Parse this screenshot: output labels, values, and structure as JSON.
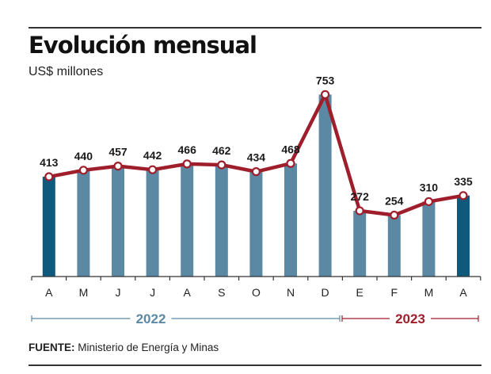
{
  "title": "Evolución mensual",
  "subtitle": "US$ millones",
  "source": {
    "label": "FUENTE:",
    "text": "Ministerio de Energía y Minas"
  },
  "colors": {
    "bar": "#5b89a4",
    "bar_highlight": "#0f5a7c",
    "line": "#9e1f2b",
    "axis": "#333333",
    "year_2022": "#5b89a4",
    "year_2023": "#9e1f2b"
  },
  "chart_data": {
    "type": "bar",
    "categories": [
      "A",
      "M",
      "J",
      "J",
      "A",
      "S",
      "O",
      "N",
      "D",
      "E",
      "F",
      "M",
      "A"
    ],
    "values": [
      413,
      440,
      457,
      442,
      466,
      462,
      434,
      468,
      753,
      272,
      254,
      310,
      335
    ],
    "highlighted": [
      0,
      12
    ],
    "overlay_line": true,
    "ylim": [
      0,
      780
    ],
    "groups": [
      {
        "label": "2022",
        "from": 0,
        "to": 8
      },
      {
        "label": "2023",
        "from": 9,
        "to": 12
      }
    ],
    "title": "Evolución mensual",
    "ylabel": "US$ millones",
    "xlabel": "",
    "grid": false
  }
}
